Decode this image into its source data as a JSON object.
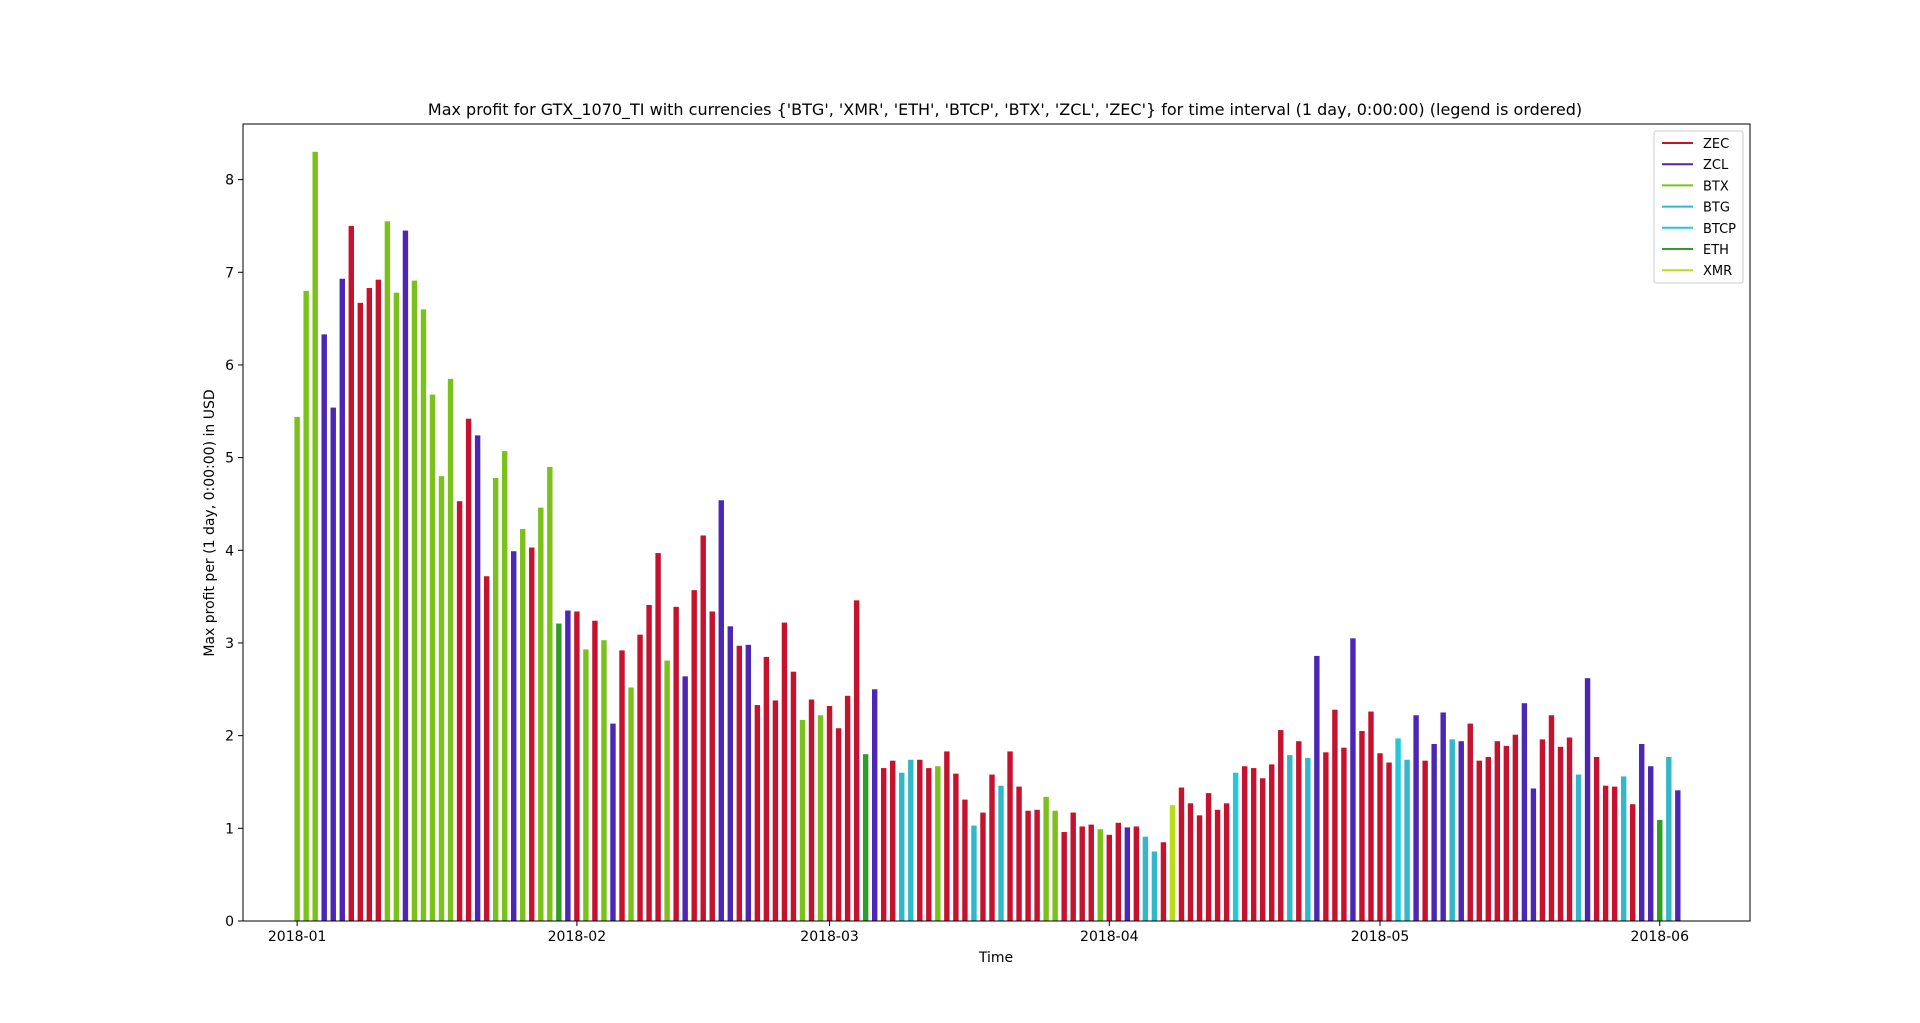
{
  "chart_data": {
    "type": "bar",
    "title": "Max profit for GTX_1070_TI with currencies {'BTG', 'XMR', 'ETH', 'BTCP', 'BTX', 'ZCL', 'ZEC'} for time interval (1 day, 0:00:00) (legend is ordered)",
    "xlabel": "Time",
    "ylabel": "Max profit per (1 day, 0:00:00) in USD",
    "ylim": [
      0,
      8.6
    ],
    "xlim": [
      "2017-12-26",
      "2018-06-11"
    ],
    "x_ticks": [
      "2018-01",
      "2018-02",
      "2018-03",
      "2018-04",
      "2018-05",
      "2018-06"
    ],
    "y_ticks": [
      0,
      1,
      2,
      3,
      4,
      5,
      6,
      7,
      8
    ],
    "grid": false,
    "legend_position": "top-right",
    "colors": {
      "ZEC": "#c4122f",
      "ZCL": "#4b27b3",
      "BTX": "#7ac21b",
      "BTG": "#33b8c9",
      "BTCP": "#22c9dc",
      "ETH": "#2e9e27",
      "XMR": "#b9dd1d"
    },
    "legend": [
      "ZEC",
      "ZCL",
      "BTX",
      "BTG",
      "BTCP",
      "ETH",
      "XMR"
    ],
    "start_date": "2018-01-01",
    "bars": [
      {
        "c": "BTX",
        "v": 5.44
      },
      {
        "c": "BTX",
        "v": 6.8
      },
      {
        "c": "BTX",
        "v": 8.3
      },
      {
        "c": "ZCL",
        "v": 6.33
      },
      {
        "c": "ZCL",
        "v": 5.54
      },
      {
        "c": "ZCL",
        "v": 6.93
      },
      {
        "c": "ZEC",
        "v": 7.5
      },
      {
        "c": "ZEC",
        "v": 6.67
      },
      {
        "c": "ZEC",
        "v": 6.83
      },
      {
        "c": "ZEC",
        "v": 6.92
      },
      {
        "c": "BTX",
        "v": 7.55
      },
      {
        "c": "BTX",
        "v": 6.78
      },
      {
        "c": "ZCL",
        "v": 7.45
      },
      {
        "c": "BTX",
        "v": 6.91
      },
      {
        "c": "BTX",
        "v": 6.6
      },
      {
        "c": "BTX",
        "v": 5.68
      },
      {
        "c": "BTX",
        "v": 4.8
      },
      {
        "c": "BTX",
        "v": 5.85
      },
      {
        "c": "ZEC",
        "v": 4.53
      },
      {
        "c": "ZEC",
        "v": 5.42
      },
      {
        "c": "ZCL",
        "v": 5.24
      },
      {
        "c": "ZEC",
        "v": 3.72
      },
      {
        "c": "BTX",
        "v": 4.78
      },
      {
        "c": "BTX",
        "v": 5.07
      },
      {
        "c": "ZCL",
        "v": 3.99
      },
      {
        "c": "BTX",
        "v": 4.23
      },
      {
        "c": "ZEC",
        "v": 4.03
      },
      {
        "c": "BTX",
        "v": 4.46
      },
      {
        "c": "BTX",
        "v": 4.9
      },
      {
        "c": "ETH",
        "v": 3.21
      },
      {
        "c": "ZCL",
        "v": 3.35
      },
      {
        "c": "ZEC",
        "v": 3.34
      },
      {
        "c": "BTX",
        "v": 2.93
      },
      {
        "c": "ZEC",
        "v": 3.24
      },
      {
        "c": "BTX",
        "v": 3.03
      },
      {
        "c": "ZCL",
        "v": 2.13
      },
      {
        "c": "ZEC",
        "v": 2.92
      },
      {
        "c": "BTX",
        "v": 2.52
      },
      {
        "c": "ZEC",
        "v": 3.09
      },
      {
        "c": "ZEC",
        "v": 3.41
      },
      {
        "c": "ZEC",
        "v": 3.97
      },
      {
        "c": "BTX",
        "v": 2.81
      },
      {
        "c": "ZEC",
        "v": 3.39
      },
      {
        "c": "ZCL",
        "v": 2.64
      },
      {
        "c": "ZEC",
        "v": 3.57
      },
      {
        "c": "ZEC",
        "v": 4.16
      },
      {
        "c": "ZEC",
        "v": 3.34
      },
      {
        "c": "ZCL",
        "v": 4.54
      },
      {
        "c": "ZCL",
        "v": 3.18
      },
      {
        "c": "ZEC",
        "v": 2.97
      },
      {
        "c": "ZCL",
        "v": 2.98
      },
      {
        "c": "ZEC",
        "v": 2.33
      },
      {
        "c": "ZEC",
        "v": 2.85
      },
      {
        "c": "ZEC",
        "v": 2.38
      },
      {
        "c": "ZEC",
        "v": 3.22
      },
      {
        "c": "ZEC",
        "v": 2.69
      },
      {
        "c": "BTX",
        "v": 2.17
      },
      {
        "c": "ZEC",
        "v": 2.39
      },
      {
        "c": "BTX",
        "v": 2.22
      },
      {
        "c": "ZEC",
        "v": 2.32
      },
      {
        "c": "ZEC",
        "v": 2.08
      },
      {
        "c": "ZEC",
        "v": 2.43
      },
      {
        "c": "ZEC",
        "v": 3.46
      },
      {
        "c": "ETH",
        "v": 1.8
      },
      {
        "c": "ZCL",
        "v": 2.5
      },
      {
        "c": "ZEC",
        "v": 1.65
      },
      {
        "c": "ZEC",
        "v": 1.73
      },
      {
        "c": "BTG",
        "v": 1.6
      },
      {
        "c": "BTG",
        "v": 1.74
      },
      {
        "c": "ZEC",
        "v": 1.74
      },
      {
        "c": "ZEC",
        "v": 1.65
      },
      {
        "c": "BTX",
        "v": 1.67
      },
      {
        "c": "ZEC",
        "v": 1.83
      },
      {
        "c": "ZEC",
        "v": 1.59
      },
      {
        "c": "ZEC",
        "v": 1.31
      },
      {
        "c": "BTG",
        "v": 1.03
      },
      {
        "c": "ZEC",
        "v": 1.17
      },
      {
        "c": "ZEC",
        "v": 1.58
      },
      {
        "c": "BTG",
        "v": 1.46
      },
      {
        "c": "ZEC",
        "v": 1.83
      },
      {
        "c": "ZEC",
        "v": 1.45
      },
      {
        "c": "ZEC",
        "v": 1.19
      },
      {
        "c": "ZEC",
        "v": 1.2
      },
      {
        "c": "BTX",
        "v": 1.34
      },
      {
        "c": "BTX",
        "v": 1.19
      },
      {
        "c": "ZEC",
        "v": 0.96
      },
      {
        "c": "ZEC",
        "v": 1.17
      },
      {
        "c": "ZEC",
        "v": 1.02
      },
      {
        "c": "ZEC",
        "v": 1.04
      },
      {
        "c": "BTX",
        "v": 0.99
      },
      {
        "c": "ZEC",
        "v": 0.93
      },
      {
        "c": "ZEC",
        "v": 1.06
      },
      {
        "c": "ZCL",
        "v": 1.01
      },
      {
        "c": "ZEC",
        "v": 1.02
      },
      {
        "c": "BTG",
        "v": 0.91
      },
      {
        "c": "BTG",
        "v": 0.75
      },
      {
        "c": "ZEC",
        "v": 0.85
      },
      {
        "c": "XMR",
        "v": 1.25
      },
      {
        "c": "ZEC",
        "v": 1.44
      },
      {
        "c": "ZEC",
        "v": 1.27
      },
      {
        "c": "ZEC",
        "v": 1.14
      },
      {
        "c": "ZEC",
        "v": 1.38
      },
      {
        "c": "ZEC",
        "v": 1.2
      },
      {
        "c": "ZEC",
        "v": 1.27
      },
      {
        "c": "BTCP",
        "v": 1.6
      },
      {
        "c": "ZEC",
        "v": 1.67
      },
      {
        "c": "ZEC",
        "v": 1.65
      },
      {
        "c": "ZEC",
        "v": 1.54
      },
      {
        "c": "ZEC",
        "v": 1.69
      },
      {
        "c": "ZEC",
        "v": 2.06
      },
      {
        "c": "BTG",
        "v": 1.79
      },
      {
        "c": "ZEC",
        "v": 1.94
      },
      {
        "c": "BTG",
        "v": 1.76
      },
      {
        "c": "ZCL",
        "v": 2.86
      },
      {
        "c": "ZEC",
        "v": 1.82
      },
      {
        "c": "ZEC",
        "v": 2.28
      },
      {
        "c": "ZEC",
        "v": 1.87
      },
      {
        "c": "ZCL",
        "v": 3.05
      },
      {
        "c": "ZEC",
        "v": 2.05
      },
      {
        "c": "ZEC",
        "v": 2.26
      },
      {
        "c": "ZEC",
        "v": 1.81
      },
      {
        "c": "ZEC",
        "v": 1.71
      },
      {
        "c": "BTCP",
        "v": 1.97
      },
      {
        "c": "BTG",
        "v": 1.74
      },
      {
        "c": "ZCL",
        "v": 2.22
      },
      {
        "c": "ZEC",
        "v": 1.73
      },
      {
        "c": "ZCL",
        "v": 1.91
      },
      {
        "c": "ZCL",
        "v": 2.25
      },
      {
        "c": "BTG",
        "v": 1.96
      },
      {
        "c": "ZCL",
        "v": 1.94
      },
      {
        "c": "ZEC",
        "v": 2.13
      },
      {
        "c": "ZEC",
        "v": 1.73
      },
      {
        "c": "ZEC",
        "v": 1.77
      },
      {
        "c": "ZEC",
        "v": 1.94
      },
      {
        "c": "ZEC",
        "v": 1.89
      },
      {
        "c": "ZEC",
        "v": 2.01
      },
      {
        "c": "ZCL",
        "v": 2.35
      },
      {
        "c": "ZCL",
        "v": 1.43
      },
      {
        "c": "ZEC",
        "v": 1.96
      },
      {
        "c": "ZEC",
        "v": 2.22
      },
      {
        "c": "ZEC",
        "v": 1.88
      },
      {
        "c": "ZEC",
        "v": 1.98
      },
      {
        "c": "BTG",
        "v": 1.58
      },
      {
        "c": "ZCL",
        "v": 2.62
      },
      {
        "c": "ZEC",
        "v": 1.77
      },
      {
        "c": "ZEC",
        "v": 1.46
      },
      {
        "c": "ZEC",
        "v": 1.45
      },
      {
        "c": "BTG",
        "v": 1.56
      },
      {
        "c": "ZEC",
        "v": 1.26
      },
      {
        "c": "ZCL",
        "v": 1.91
      },
      {
        "c": "ZCL",
        "v": 1.67
      },
      {
        "c": "ETH",
        "v": 1.09
      },
      {
        "c": "BTG",
        "v": 1.77
      },
      {
        "c": "ZCL",
        "v": 1.41
      }
    ]
  }
}
